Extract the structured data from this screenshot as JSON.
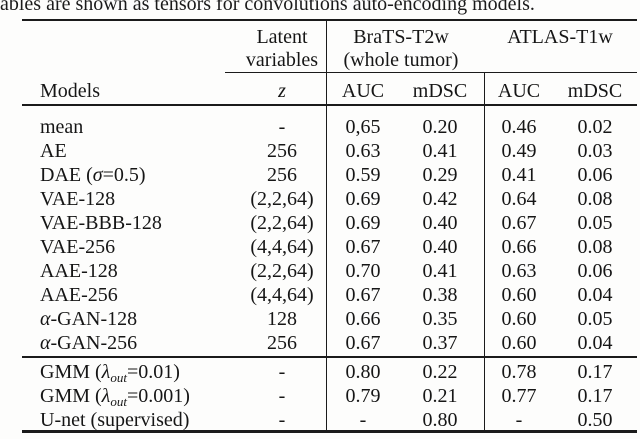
{
  "caption": "ables are shown as tensors for convolutions auto-encoding models.",
  "table": {
    "header": {
      "latent_line1": "Latent",
      "latent_line2": "variables",
      "brats_line1": "BraTS-T2w",
      "brats_line2": "(whole tumor)",
      "atlas": "ATLAS-T1w",
      "models": "Models",
      "z": "z",
      "auc": "AUC",
      "mdsc": "mDSC"
    },
    "sections": [
      {
        "rows": [
          {
            "model": [
              {
                "t": "mean"
              }
            ],
            "z": "-",
            "brats_auc": "0,65",
            "brats_mdsc": "0.20",
            "atlas_auc": "0.46",
            "atlas_mdsc": "0.02"
          },
          {
            "model": [
              {
                "t": "AE"
              }
            ],
            "z": "256",
            "brats_auc": "0.63",
            "brats_mdsc": "0.41",
            "atlas_auc": "0.49",
            "atlas_mdsc": "0.03"
          },
          {
            "model": [
              {
                "t": "DAE ("
              },
              {
                "t": "σ",
                "i": 1
              },
              {
                "t": "=0.5)"
              }
            ],
            "z": "256",
            "brats_auc": "0.59",
            "brats_mdsc": "0.29",
            "atlas_auc": "0.41",
            "atlas_mdsc": "0.06"
          },
          {
            "model": [
              {
                "t": "VAE-128"
              }
            ],
            "z": "(2,2,64)",
            "brats_auc": "0.69",
            "brats_mdsc": "0.42",
            "atlas_auc": "0.64",
            "atlas_mdsc": "0.08"
          },
          {
            "model": [
              {
                "t": "VAE-BBB-128"
              }
            ],
            "z": "(2,2,64)",
            "brats_auc": "0.69",
            "brats_mdsc": "0.40",
            "atlas_auc": "0.67",
            "atlas_mdsc": "0.05"
          },
          {
            "model": [
              {
                "t": "VAE-256"
              }
            ],
            "z": "(4,4,64)",
            "brats_auc": "0.67",
            "brats_mdsc": "0.40",
            "atlas_auc": "0.66",
            "atlas_mdsc": "0.08"
          },
          {
            "model": [
              {
                "t": "AAE-128"
              }
            ],
            "z": "(2,2,64)",
            "brats_auc": "0.70",
            "brats_mdsc": "0.41",
            "atlas_auc": "0.63",
            "atlas_mdsc": "0.06"
          },
          {
            "model": [
              {
                "t": "AAE-256"
              }
            ],
            "z": "(4,4,64)",
            "brats_auc": "0.67",
            "brats_mdsc": "0.38",
            "atlas_auc": "0.60",
            "atlas_mdsc": "0.04"
          },
          {
            "model": [
              {
                "t": "α",
                "i": 1
              },
              {
                "t": "-GAN-128"
              }
            ],
            "z": "128",
            "brats_auc": "0.66",
            "brats_mdsc": "0.35",
            "atlas_auc": "0.60",
            "atlas_mdsc": "0.05"
          },
          {
            "model": [
              {
                "t": "α",
                "i": 1
              },
              {
                "t": "-GAN-256"
              }
            ],
            "z": "256",
            "brats_auc": "0.67",
            "brats_mdsc": "0.37",
            "atlas_auc": "0.60",
            "atlas_mdsc": "0.04"
          }
        ]
      },
      {
        "rows": [
          {
            "model": [
              {
                "t": "GMM ("
              },
              {
                "t": "λ",
                "i": 1
              },
              {
                "t": "out",
                "sub": 1
              },
              {
                "t": "=0.01)"
              }
            ],
            "z": "-",
            "brats_auc": "0.80",
            "brats_mdsc": "0.22",
            "atlas_auc": "0.78",
            "atlas_mdsc": "0.17"
          },
          {
            "model": [
              {
                "t": "GMM ("
              },
              {
                "t": "λ",
                "i": 1
              },
              {
                "t": "out",
                "sub": 1
              },
              {
                "t": "=0.001)"
              }
            ],
            "z": "-",
            "brats_auc": "0.79",
            "brats_mdsc": "0.21",
            "atlas_auc": "0.77",
            "atlas_mdsc": "0.17"
          },
          {
            "model": [
              {
                "t": "U-net (supervised)"
              }
            ],
            "z": "-",
            "brats_auc": "-",
            "brats_mdsc": "0.80",
            "atlas_auc": "-",
            "atlas_mdsc": "0.50"
          }
        ]
      }
    ]
  }
}
